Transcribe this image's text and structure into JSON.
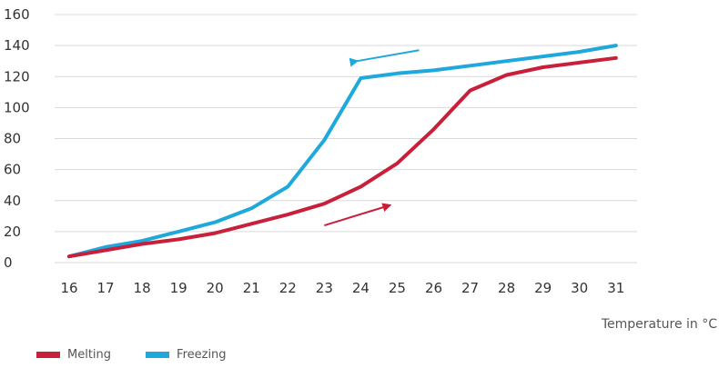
{
  "chart_data": {
    "type": "line",
    "x": [
      16,
      17,
      18,
      19,
      20,
      21,
      22,
      23,
      24,
      25,
      26,
      27,
      28,
      29,
      30,
      31
    ],
    "series": [
      {
        "name": "Melting",
        "color": "#c8203a",
        "values": [
          4,
          8,
          12,
          15,
          19,
          25,
          31,
          38,
          49,
          64,
          86,
          111,
          121,
          126,
          129,
          132
        ]
      },
      {
        "name": "Freezing",
        "color": "#1fa8dc",
        "values": [
          4,
          10,
          14,
          20,
          26,
          35,
          49,
          79,
          119,
          122,
          124,
          127,
          130,
          133,
          136,
          140
        ]
      }
    ],
    "xlabel": "Temperature in °C",
    "ylabel": "",
    "ylim": [
      0,
      160
    ],
    "yticks": [
      0,
      20,
      40,
      60,
      80,
      100,
      120,
      140,
      160
    ],
    "grid": "horizontal",
    "legend_position": "bottom-left",
    "annotations": [
      {
        "type": "arrow",
        "direction": "left",
        "series": "Freezing",
        "color": "#1fa8dc",
        "from": [
          25.6,
          137
        ],
        "to": [
          23.9,
          130
        ]
      },
      {
        "type": "arrow",
        "direction": "right",
        "series": "Melting",
        "color": "#c8203a",
        "from": [
          23.0,
          24
        ],
        "to": [
          24.8,
          37
        ]
      }
    ]
  }
}
